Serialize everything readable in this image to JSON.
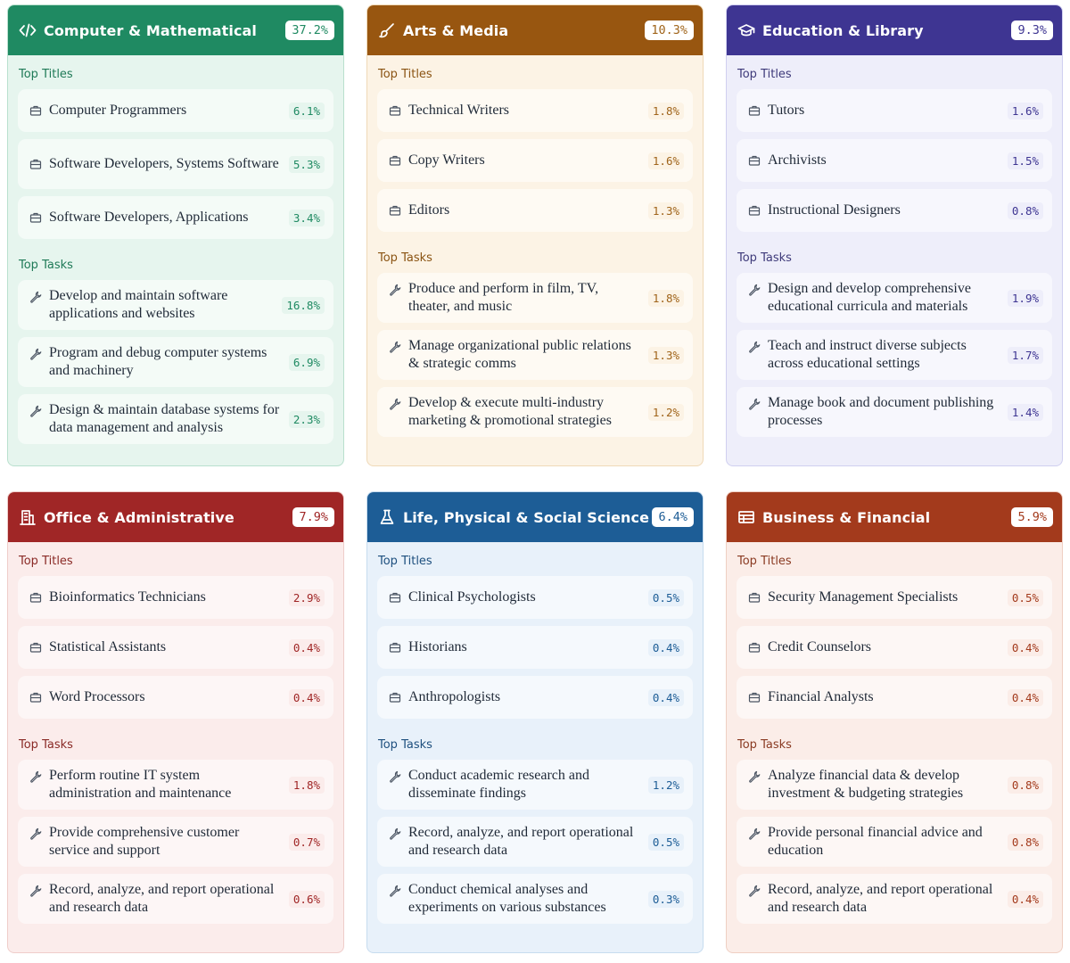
{
  "labels": {
    "top_titles": "Top Titles",
    "top_tasks": "Top Tasks"
  },
  "cards": [
    {
      "title": "Computer & Mathematical",
      "percent": "37.2%",
      "icon": "code-icon",
      "colors": {
        "header": "#1f8a62",
        "body": "#e6f5ee",
        "border": "#b9e0ce",
        "label": "#1f7a57",
        "pct": "#1f8a62"
      },
      "titles": [
        {
          "name": "Computer Programmers",
          "pct": "6.1%"
        },
        {
          "name": "Software Developers, Systems Software",
          "pct": "5.3%"
        },
        {
          "name": "Software Developers, Applications",
          "pct": "3.4%"
        }
      ],
      "tasks": [
        {
          "name": "Develop and maintain software applications and websites",
          "pct": "16.8%"
        },
        {
          "name": "Program and debug computer systems and machinery",
          "pct": "6.9%"
        },
        {
          "name": "Design & maintain database systems for data management and analysis",
          "pct": "2.3%"
        }
      ]
    },
    {
      "title": "Arts & Media",
      "percent": "10.3%",
      "icon": "brush-icon",
      "colors": {
        "header": "#985610",
        "body": "#fcf3e5",
        "border": "#efd9b7",
        "label": "#8a5312",
        "pct": "#a0641a"
      },
      "titles": [
        {
          "name": "Technical Writers",
          "pct": "1.8%"
        },
        {
          "name": "Copy Writers",
          "pct": "1.6%"
        },
        {
          "name": "Editors",
          "pct": "1.3%"
        }
      ],
      "tasks": [
        {
          "name": "Produce and perform in film, TV, theater, and music",
          "pct": "1.8%"
        },
        {
          "name": "Manage organizational public relations & strategic comms",
          "pct": "1.3%"
        },
        {
          "name": "Develop & execute multi-industry marketing & promotional strategies",
          "pct": "1.2%"
        }
      ]
    },
    {
      "title": "Education & Library",
      "percent": "9.3%",
      "icon": "graduation-cap-icon",
      "colors": {
        "header": "#3e3592",
        "body": "#eeeefa",
        "border": "#d0cff0",
        "label": "#3e3a7a",
        "pct": "#3e3592"
      },
      "titles": [
        {
          "name": "Tutors",
          "pct": "1.6%"
        },
        {
          "name": "Archivists",
          "pct": "1.5%"
        },
        {
          "name": "Instructional Designers",
          "pct": "0.8%"
        }
      ],
      "tasks": [
        {
          "name": "Design and develop comprehensive educational curricula and materials",
          "pct": "1.9%"
        },
        {
          "name": "Teach and instruct diverse subjects across educational settings",
          "pct": "1.7%"
        },
        {
          "name": "Manage book and document publishing processes",
          "pct": "1.4%"
        }
      ]
    },
    {
      "title": "Office & Administrative",
      "percent": "7.9%",
      "icon": "building-icon",
      "colors": {
        "header": "#a02626",
        "body": "#fbeceb",
        "border": "#efcdca",
        "label": "#8a2a26",
        "pct": "#a02626"
      },
      "titles": [
        {
          "name": "Bioinformatics Technicians",
          "pct": "2.9%"
        },
        {
          "name": "Statistical Assistants",
          "pct": "0.4%"
        },
        {
          "name": "Word Processors",
          "pct": "0.4%"
        }
      ],
      "tasks": [
        {
          "name": "Perform routine IT system administration and maintenance",
          "pct": "1.8%"
        },
        {
          "name": "Provide comprehensive customer service and support",
          "pct": "0.7%"
        },
        {
          "name": "Record, analyze, and report operational and research data",
          "pct": "0.6%"
        }
      ]
    },
    {
      "title": "Life, Physical & Social Science",
      "percent": "6.4%",
      "icon": "flask-icon",
      "colors": {
        "header": "#1d5d96",
        "body": "#e8f1fa",
        "border": "#c7dcef",
        "label": "#1d4f7e",
        "pct": "#1d5d96"
      },
      "titles": [
        {
          "name": "Clinical Psychologists",
          "pct": "0.5%"
        },
        {
          "name": "Historians",
          "pct": "0.4%"
        },
        {
          "name": "Anthropologists",
          "pct": "0.4%"
        }
      ],
      "tasks": [
        {
          "name": "Conduct academic research and disseminate findings",
          "pct": "1.2%"
        },
        {
          "name": "Record, analyze, and report operational and research data",
          "pct": "0.5%"
        },
        {
          "name": "Conduct chemical analyses and experiments on various substances",
          "pct": "0.3%"
        }
      ]
    },
    {
      "title": "Business & Financial",
      "percent": "5.9%",
      "icon": "finance-table-icon",
      "colors": {
        "header": "#a33a1c",
        "body": "#fbede8",
        "border": "#efcfc3",
        "label": "#8a3a22",
        "pct": "#a33a1c"
      },
      "titles": [
        {
          "name": "Security Management Specialists",
          "pct": "0.5%"
        },
        {
          "name": "Credit Counselors",
          "pct": "0.4%"
        },
        {
          "name": "Financial Analysts",
          "pct": "0.4%"
        }
      ],
      "tasks": [
        {
          "name": "Analyze financial data & develop investment & budgeting strategies",
          "pct": "0.8%"
        },
        {
          "name": "Provide personal financial advice and education",
          "pct": "0.8%"
        },
        {
          "name": "Record, analyze, and report operational and research data",
          "pct": "0.4%"
        }
      ]
    }
  ]
}
